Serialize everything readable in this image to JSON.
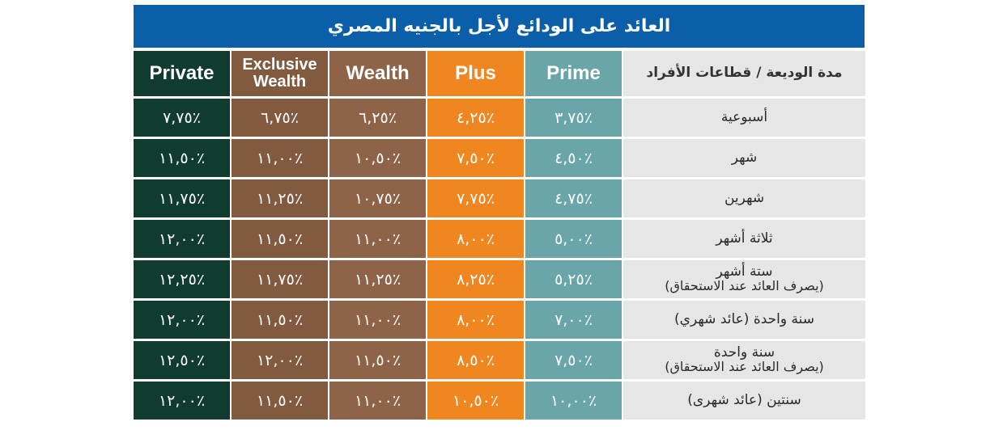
{
  "title": "العائد على الودائع لأجل بالجنيه المصري",
  "header": {
    "private": "Private",
    "exclusive_wealth_line1": "Exclusive",
    "exclusive_wealth_line2": "Wealth",
    "wealth": "Wealth",
    "plus": "Plus",
    "prime": "Prime",
    "tenor": "مدة الوديعة / قطاعات الأفراد"
  },
  "colors": {
    "title_bar": "#0a5fa8",
    "private": "#0f3c2f",
    "exclusive_wealth": "#815a40",
    "wealth": "#8f6347",
    "plus": "#f0861f",
    "prime": "#6aa6a9",
    "label_bg": "#e6e6e7"
  },
  "rows": [
    {
      "label1": "أسبوعية",
      "label2": "",
      "private": "٪٧,٧٥",
      "exclusive_wealth": "٪٦,٧٥",
      "wealth": "٪٦,٢٥",
      "plus": "٪٤,٢٥",
      "prime": "٪٣,٧٥"
    },
    {
      "label1": "شهر",
      "label2": "",
      "private": "٪١١,٥٠",
      "exclusive_wealth": "٪١١,٠٠",
      "wealth": "٪١٠,٥٠",
      "plus": "٪٧,٥٠",
      "prime": "٪٤,٥٠"
    },
    {
      "label1": "شهرين",
      "label2": "",
      "private": "٪١١,٧٥",
      "exclusive_wealth": "٪١١,٢٥",
      "wealth": "٪١٠,٧٥",
      "plus": "٪٧,٧٥",
      "prime": "٪٤,٧٥"
    },
    {
      "label1": "ثلاثة أشهر",
      "label2": "",
      "private": "٪١٢,٠٠",
      "exclusive_wealth": "٪١١,٥٠",
      "wealth": "٪١١,٠٠",
      "plus": "٪٨,٠٠",
      "prime": "٪٥,٠٠"
    },
    {
      "label1": "ستة أشهر",
      "label2": "(يصرف العائد عند الاستحقاق)",
      "private": "٪١٢,٢٥",
      "exclusive_wealth": "٪١١,٧٥",
      "wealth": "٪١١,٢٥",
      "plus": "٪٨,٢٥",
      "prime": "٪٥,٢٥"
    },
    {
      "label1": "سنة واحدة (عائد شهري)",
      "label2": "",
      "private": "٪١٢,٠٠",
      "exclusive_wealth": "٪١١,٥٠",
      "wealth": "٪١١,٠٠",
      "plus": "٪٨,٠٠",
      "prime": "٪٧,٠٠"
    },
    {
      "label1": "سنة واحدة",
      "label2": "(يصرف العائد عند الاستحقاق)",
      "private": "٪١٢,٥٠",
      "exclusive_wealth": "٪١٢,٠٠",
      "wealth": "٪١١,٥٠",
      "plus": "٪٨,٥٠",
      "prime": "٪٧,٥٠"
    },
    {
      "label1": "سنتين (عائد شهرى)",
      "label2": "",
      "private": "٪١٢,٠٠",
      "exclusive_wealth": "٪١١,٥٠",
      "wealth": "٪١١,٠٠",
      "plus": "٪١٠,٥٠",
      "prime": "٪١٠,٠٠"
    }
  ]
}
